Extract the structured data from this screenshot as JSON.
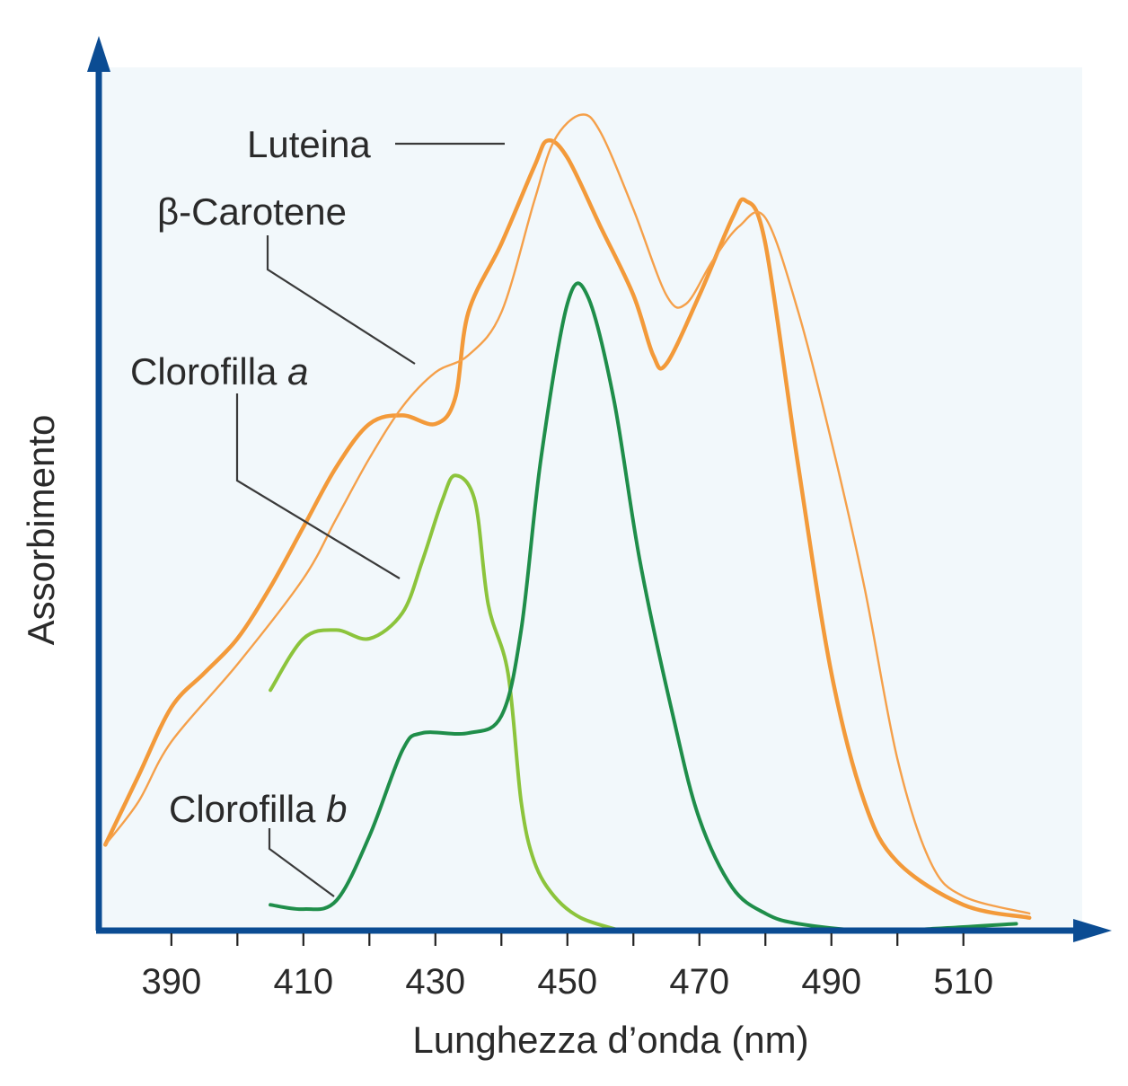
{
  "chart_data": {
    "type": "line",
    "xlabel": "Lunghezza d’onda (nm)",
    "ylabel": "Assorbimento",
    "xlim": [
      379,
      528
    ],
    "ylim": [
      0,
      1.0
    ],
    "x_ticks": [
      390,
      400,
      410,
      420,
      430,
      440,
      450,
      460,
      470,
      480,
      490,
      500,
      510
    ],
    "x_tick_labels": [
      "390",
      "",
      "410",
      "",
      "430",
      "",
      "450",
      "",
      "470",
      "",
      "490",
      "",
      "510"
    ],
    "grid": false,
    "background": "#f2f8fb",
    "axis_color": "#0b4c93",
    "series": [
      {
        "name": "Luteina",
        "label_suffix": "",
        "color": "#f39a3a",
        "line": "thick",
        "points": [
          [
            380,
            0.1
          ],
          [
            385,
            0.18
          ],
          [
            390,
            0.26
          ],
          [
            395,
            0.3
          ],
          [
            400,
            0.34
          ],
          [
            405,
            0.4
          ],
          [
            410,
            0.47
          ],
          [
            415,
            0.54
          ],
          [
            420,
            0.59
          ],
          [
            425,
            0.6
          ],
          [
            430,
            0.59
          ],
          [
            433,
            0.62
          ],
          [
            435,
            0.72
          ],
          [
            440,
            0.8
          ],
          [
            445,
            0.89
          ],
          [
            447,
            0.92
          ],
          [
            450,
            0.9
          ],
          [
            455,
            0.82
          ],
          [
            460,
            0.74
          ],
          [
            463,
            0.67
          ],
          [
            465,
            0.66
          ],
          [
            470,
            0.74
          ],
          [
            475,
            0.83
          ],
          [
            477,
            0.85
          ],
          [
            480,
            0.8
          ],
          [
            485,
            0.54
          ],
          [
            490,
            0.3
          ],
          [
            495,
            0.15
          ],
          [
            500,
            0.08
          ],
          [
            510,
            0.03
          ],
          [
            520,
            0.015
          ]
        ]
      },
      {
        "name": "β-Carotene",
        "label_suffix": "",
        "color": "#f5a04a",
        "line": "thin",
        "points": [
          [
            380,
            0.1
          ],
          [
            385,
            0.15
          ],
          [
            390,
            0.22
          ],
          [
            400,
            0.31
          ],
          [
            410,
            0.41
          ],
          [
            415,
            0.48
          ],
          [
            420,
            0.55
          ],
          [
            425,
            0.61
          ],
          [
            430,
            0.65
          ],
          [
            435,
            0.67
          ],
          [
            440,
            0.72
          ],
          [
            445,
            0.85
          ],
          [
            448,
            0.92
          ],
          [
            452,
            0.95
          ],
          [
            455,
            0.93
          ],
          [
            460,
            0.84
          ],
          [
            465,
            0.74
          ],
          [
            468,
            0.73
          ],
          [
            472,
            0.78
          ],
          [
            476,
            0.82
          ],
          [
            480,
            0.83
          ],
          [
            485,
            0.72
          ],
          [
            490,
            0.57
          ],
          [
            495,
            0.4
          ],
          [
            500,
            0.2
          ],
          [
            505,
            0.08
          ],
          [
            510,
            0.04
          ],
          [
            520,
            0.02
          ]
        ]
      },
      {
        "name": "Clorofilla",
        "label_suffix": "a",
        "color": "#8cc43c",
        "line": "medium",
        "points": [
          [
            405,
            0.28
          ],
          [
            410,
            0.34
          ],
          [
            415,
            0.35
          ],
          [
            420,
            0.34
          ],
          [
            425,
            0.37
          ],
          [
            428,
            0.43
          ],
          [
            431,
            0.5
          ],
          [
            433,
            0.53
          ],
          [
            436,
            0.5
          ],
          [
            438,
            0.38
          ],
          [
            441,
            0.3
          ],
          [
            443,
            0.15
          ],
          [
            445,
            0.08
          ],
          [
            448,
            0.04
          ],
          [
            452,
            0.015
          ],
          [
            458,
            0.0
          ]
        ]
      },
      {
        "name": "Clorofilla",
        "label_suffix": "b",
        "color": "#1f8e4a",
        "line": "medium",
        "points": [
          [
            405,
            0.03
          ],
          [
            410,
            0.025
          ],
          [
            415,
            0.035
          ],
          [
            420,
            0.11
          ],
          [
            425,
            0.21
          ],
          [
            428,
            0.23
          ],
          [
            435,
            0.23
          ],
          [
            440,
            0.25
          ],
          [
            443,
            0.35
          ],
          [
            446,
            0.55
          ],
          [
            450,
            0.73
          ],
          [
            453,
            0.74
          ],
          [
            457,
            0.62
          ],
          [
            461,
            0.43
          ],
          [
            466,
            0.25
          ],
          [
            470,
            0.13
          ],
          [
            475,
            0.05
          ],
          [
            480,
            0.02
          ],
          [
            485,
            0.008
          ],
          [
            495,
            0.0
          ],
          [
            505,
            0.002
          ],
          [
            518,
            0.008
          ]
        ]
      }
    ]
  }
}
